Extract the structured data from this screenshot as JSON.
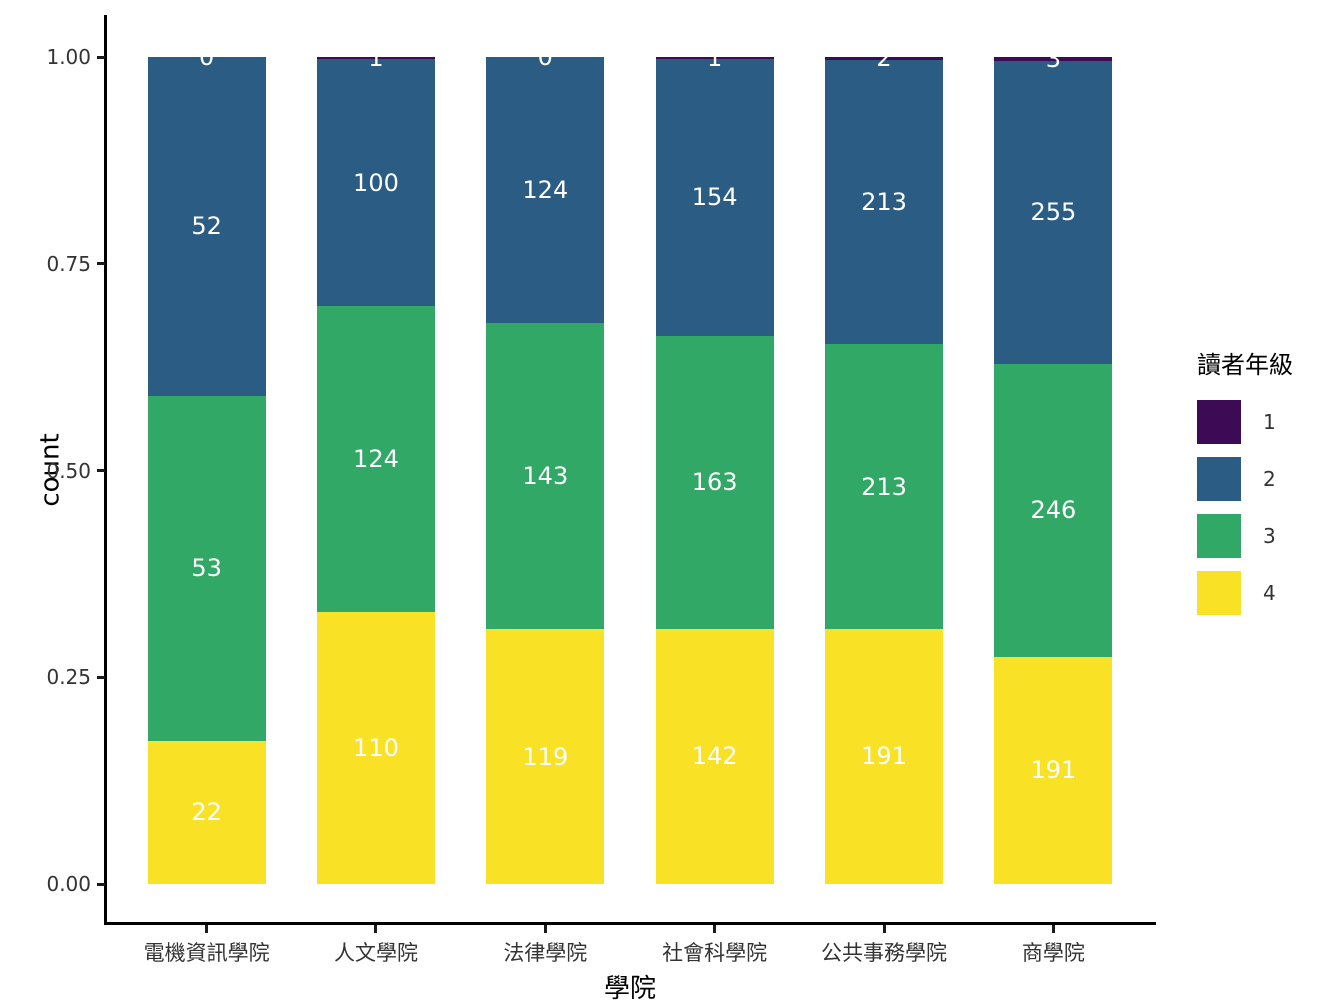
{
  "chart_data": {
    "type": "bar",
    "stacked": true,
    "normalized": "fill",
    "title": "",
    "xlabel": "學院",
    "ylabel": "count",
    "categories": [
      "電機資訊學院",
      "人文學院",
      "法律學院",
      "社會科學院",
      "公共事務學院",
      "商學院"
    ],
    "series": [
      {
        "name": "1",
        "color": "#3d0a55",
        "values": [
          0,
          1,
          0,
          1,
          2,
          3
        ]
      },
      {
        "name": "2",
        "color": "#2b5c84",
        "values": [
          52,
          100,
          124,
          154,
          213,
          255
        ]
      },
      {
        "name": "3",
        "color": "#31a865",
        "values": [
          53,
          124,
          143,
          163,
          213,
          246
        ]
      },
      {
        "name": "4",
        "color": "#f9e125",
        "values": [
          22,
          110,
          119,
          142,
          191,
          191
        ]
      }
    ],
    "bar_value_labels_shown": true,
    "bar_label_color": "#ffffff",
    "yticks": [
      {
        "value": 0.0,
        "label": "0.00"
      },
      {
        "value": 0.25,
        "label": "0.25"
      },
      {
        "value": 0.5,
        "label": "0.50"
      },
      {
        "value": 0.75,
        "label": "0.75"
      },
      {
        "value": 1.0,
        "label": "1.00"
      }
    ],
    "ylim": [
      0,
      1
    ],
    "grid": false,
    "legend": {
      "title": "讀者年級",
      "position": "right",
      "items": [
        {
          "label": "1",
          "color": "#3d0a55"
        },
        {
          "label": "2",
          "color": "#2b5c84"
        },
        {
          "label": "3",
          "color": "#31a865"
        },
        {
          "label": "4",
          "color": "#f9e125"
        }
      ]
    }
  }
}
